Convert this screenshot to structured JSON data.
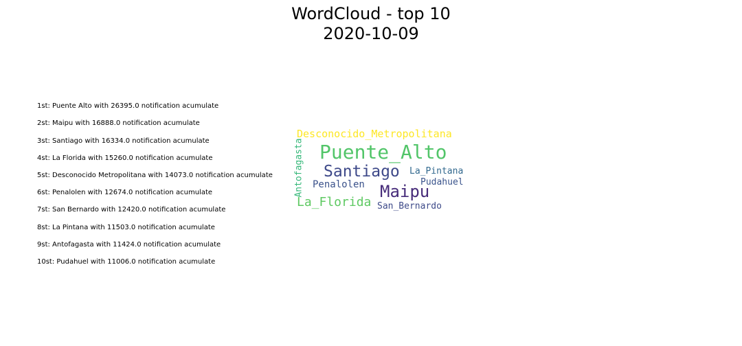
{
  "title": {
    "line1": "WordCloud - top 10",
    "line2": "2020-10-09"
  },
  "ranking": [
    "1st: Puente Alto with 26395.0 notification acumulate",
    "2st: Maipu with 16888.0 notification acumulate",
    "3st: Santiago with 16334.0 notification acumulate",
    "4st: La Florida with 15260.0 notification acumulate",
    "5st: Desconocido Metropolitana with 14073.0 notification acumulate",
    "6st: Penalolen with 12674.0 notification acumulate",
    "7st: San Bernardo with 12420.0 notification acumulate",
    "8st: La Pintana with 11503.0 notification acumulate",
    "9st: Antofagasta with 11424.0 notification acumulate",
    "10st: Pudahuel with 11006.0 notification acumulate"
  ],
  "chart_data": {
    "type": "wordcloud",
    "title": "WordCloud - top 10\n2020-10-09",
    "words": [
      {
        "text": "Puente_Alto",
        "value": 26395.0,
        "color": "#52c569"
      },
      {
        "text": "Maipu",
        "value": 16888.0,
        "color": "#472c7a"
      },
      {
        "text": "Santiago",
        "value": 16334.0,
        "color": "#3e4989"
      },
      {
        "text": "La_Florida",
        "value": 15260.0,
        "color": "#5ec962"
      },
      {
        "text": "Desconocido_Metropolitana",
        "value": 14073.0,
        "color": "#fde725"
      },
      {
        "text": "Penalolen",
        "value": 12674.0,
        "color": "#3b528b"
      },
      {
        "text": "San_Bernardo",
        "value": 12420.0,
        "color": "#3e4a89"
      },
      {
        "text": "La_Pintana",
        "value": 11503.0,
        "color": "#31688e"
      },
      {
        "text": "Antofagasta",
        "value": 11424.0,
        "color": "#35b779"
      },
      {
        "text": "Pudahuel",
        "value": 11006.0,
        "color": "#3a548c"
      }
    ]
  }
}
